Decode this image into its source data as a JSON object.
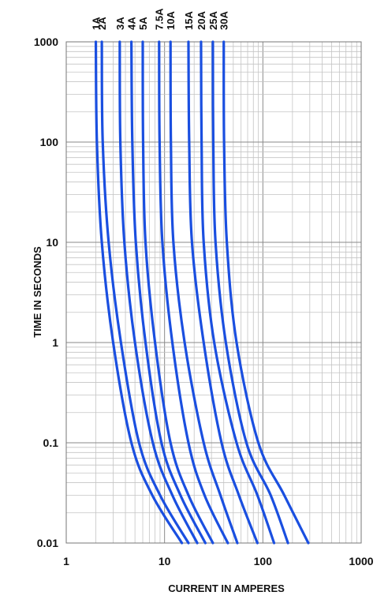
{
  "chart_data": {
    "type": "line",
    "x_scale": "log",
    "y_scale": "log",
    "xlabel": "CURRENT IN AMPERES",
    "ylabel": "TIME IN SECONDS",
    "xlim": [
      1,
      1000
    ],
    "ylim": [
      0.01,
      1000
    ],
    "x_ticks": [
      "1",
      "10",
      "100",
      "1000"
    ],
    "y_ticks": [
      "0.01",
      "0.1",
      "1",
      "10",
      "100",
      "1000"
    ],
    "grid": true,
    "line_color": "#1a4fe0",
    "series": [
      {
        "name": "1A",
        "points": [
          [
            2.0,
            1000
          ],
          [
            2.05,
            100
          ],
          [
            2.3,
            10
          ],
          [
            3.0,
            1
          ],
          [
            4.6,
            0.1
          ],
          [
            7.5,
            0.03
          ],
          [
            15,
            0.01
          ]
        ]
      },
      {
        "name": "2A",
        "points": [
          [
            2.3,
            1000
          ],
          [
            2.35,
            100
          ],
          [
            2.7,
            10
          ],
          [
            3.6,
            1
          ],
          [
            5.5,
            0.1
          ],
          [
            9.0,
            0.03
          ],
          [
            17.5,
            0.01
          ]
        ]
      },
      {
        "name": "3A",
        "points": [
          [
            3.5,
            1000
          ],
          [
            3.55,
            100
          ],
          [
            3.9,
            10
          ],
          [
            5.0,
            1
          ],
          [
            7.6,
            0.1
          ],
          [
            12,
            0.03
          ],
          [
            21.5,
            0.01
          ]
        ]
      },
      {
        "name": "4A",
        "points": [
          [
            4.6,
            1000
          ],
          [
            4.7,
            100
          ],
          [
            5.1,
            10
          ],
          [
            6.4,
            1
          ],
          [
            9.3,
            0.1
          ],
          [
            14.5,
            0.03
          ],
          [
            26,
            0.01
          ]
        ]
      },
      {
        "name": "5A",
        "points": [
          [
            6.0,
            1000
          ],
          [
            6.05,
            100
          ],
          [
            6.4,
            10
          ],
          [
            8.0,
            1
          ],
          [
            11.5,
            0.1
          ],
          [
            17.5,
            0.03
          ],
          [
            31,
            0.01
          ]
        ]
      },
      {
        "name": "7.5A",
        "points": [
          [
            8.8,
            1000
          ],
          [
            8.9,
            100
          ],
          [
            9.5,
            10
          ],
          [
            12,
            1
          ],
          [
            17.5,
            0.1
          ],
          [
            25.5,
            0.03
          ],
          [
            44,
            0.01
          ]
        ]
      },
      {
        "name": "10A",
        "points": [
          [
            11.5,
            1000
          ],
          [
            11.6,
            100
          ],
          [
            12.3,
            10
          ],
          [
            16,
            1
          ],
          [
            25,
            0.1
          ],
          [
            37,
            0.03
          ],
          [
            55,
            0.01
          ]
        ]
      },
      {
        "name": "15A",
        "points": [
          [
            17.5,
            1000
          ],
          [
            17.8,
            100
          ],
          [
            19,
            10
          ],
          [
            25,
            1
          ],
          [
            38,
            0.1
          ],
          [
            57,
            0.03
          ],
          [
            88,
            0.01
          ]
        ]
      },
      {
        "name": "20A",
        "points": [
          [
            23.5,
            1000
          ],
          [
            23.8,
            100
          ],
          [
            25,
            10
          ],
          [
            32,
            1
          ],
          [
            54,
            0.1
          ],
          [
            88,
            0.03
          ],
          [
            130,
            0.01
          ]
        ]
      },
      {
        "name": "25A",
        "points": [
          [
            31,
            1000
          ],
          [
            31.3,
            100
          ],
          [
            33,
            10
          ],
          [
            42,
            1
          ],
          [
            68,
            0.1
          ],
          [
            120,
            0.03
          ],
          [
            180,
            0.01
          ]
        ]
      },
      {
        "name": "30A",
        "points": [
          [
            40,
            1000
          ],
          [
            40.3,
            100
          ],
          [
            43,
            10
          ],
          [
            54,
            1
          ],
          [
            90,
            0.1
          ],
          [
            165,
            0.03
          ],
          [
            290,
            0.01
          ]
        ]
      }
    ]
  }
}
